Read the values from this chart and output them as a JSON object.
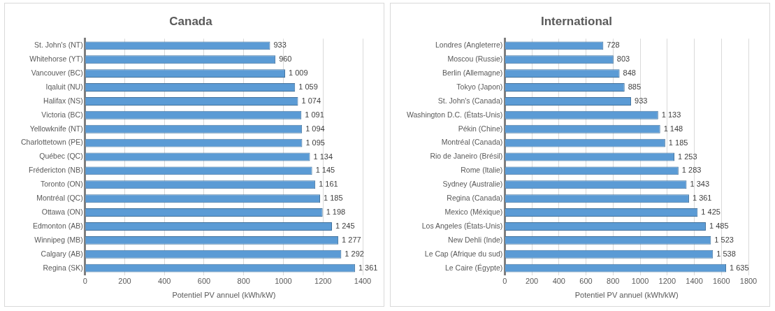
{
  "chart_data": [
    {
      "type": "bar",
      "orientation": "horizontal",
      "title": "Canada",
      "xlabel": "Potentiel PV annuel (kWh/kW)",
      "color": "#5b9bd5",
      "grid": "x",
      "xlim": [
        0,
        1400
      ],
      "xticks": [
        0,
        200,
        400,
        600,
        800,
        1000,
        1200,
        1400
      ],
      "categories": [
        "St. John's (NT)",
        "Whitehorse (YT)",
        "Vancouver (BC)",
        "Iqaluit (NU)",
        "Halifax (NS)",
        "Victoria (BC)",
        "Yellowknife (NT)",
        "Charlottetown (PE)",
        "Québec (QC)",
        "Frédericton (NB)",
        "Toronto (ON)",
        "Montréal (QC)",
        "Ottawa (ON)",
        "Edmonton (AB)",
        "Winnipeg (MB)",
        "Calgary (AB)",
        "Regina (SK)"
      ],
      "values": [
        933,
        960,
        1009,
        1059,
        1074,
        1091,
        1094,
        1095,
        1134,
        1145,
        1161,
        1185,
        1198,
        1245,
        1277,
        1292,
        1361
      ],
      "value_labels": [
        "933",
        "960",
        "1 009",
        "1 059",
        "1 074",
        "1 091",
        "1 094",
        "1 095",
        "1 134",
        "1 145",
        "1 161",
        "1 185",
        "1 198",
        "1 245",
        "1 277",
        "1 292",
        "1 361"
      ]
    },
    {
      "type": "bar",
      "orientation": "horizontal",
      "title": "International",
      "xlabel": "Potentiel PV annuel (kWh/kW)",
      "color": "#5b9bd5",
      "grid": "x",
      "xlim": [
        0,
        1800
      ],
      "xticks": [
        0,
        200,
        400,
        600,
        800,
        1000,
        1200,
        1400,
        1600,
        1800
      ],
      "categories": [
        "Londres (Angleterre)",
        "Moscou (Russie)",
        "Berlin (Allemagne)",
        "Tokyo (Japon)",
        "St. John's (Canada)",
        "Washington D.C. (États-Unis)",
        "Pékin (Chine)",
        "Montréal (Canada)",
        "Rio de Janeiro (Brésil)",
        "Rome (Italie)",
        "Sydney (Australie)",
        "Regina (Canada)",
        "Mexico (Méxique)",
        "Los Angeles (États-Unis)",
        "New Dehli (Inde)",
        "Le Cap (Afrique du sud)",
        "Le Caire (Égypte)"
      ],
      "values": [
        728,
        803,
        848,
        885,
        933,
        1133,
        1148,
        1185,
        1253,
        1283,
        1343,
        1361,
        1425,
        1485,
        1523,
        1538,
        1635
      ],
      "value_labels": [
        "728",
        "803",
        "848",
        "885",
        "933",
        "1 133",
        "1 148",
        "1 185",
        "1 253",
        "1 283",
        "1 343",
        "1 361",
        "1 425",
        "1 485",
        "1 523",
        "1 538",
        "1 635"
      ]
    }
  ]
}
